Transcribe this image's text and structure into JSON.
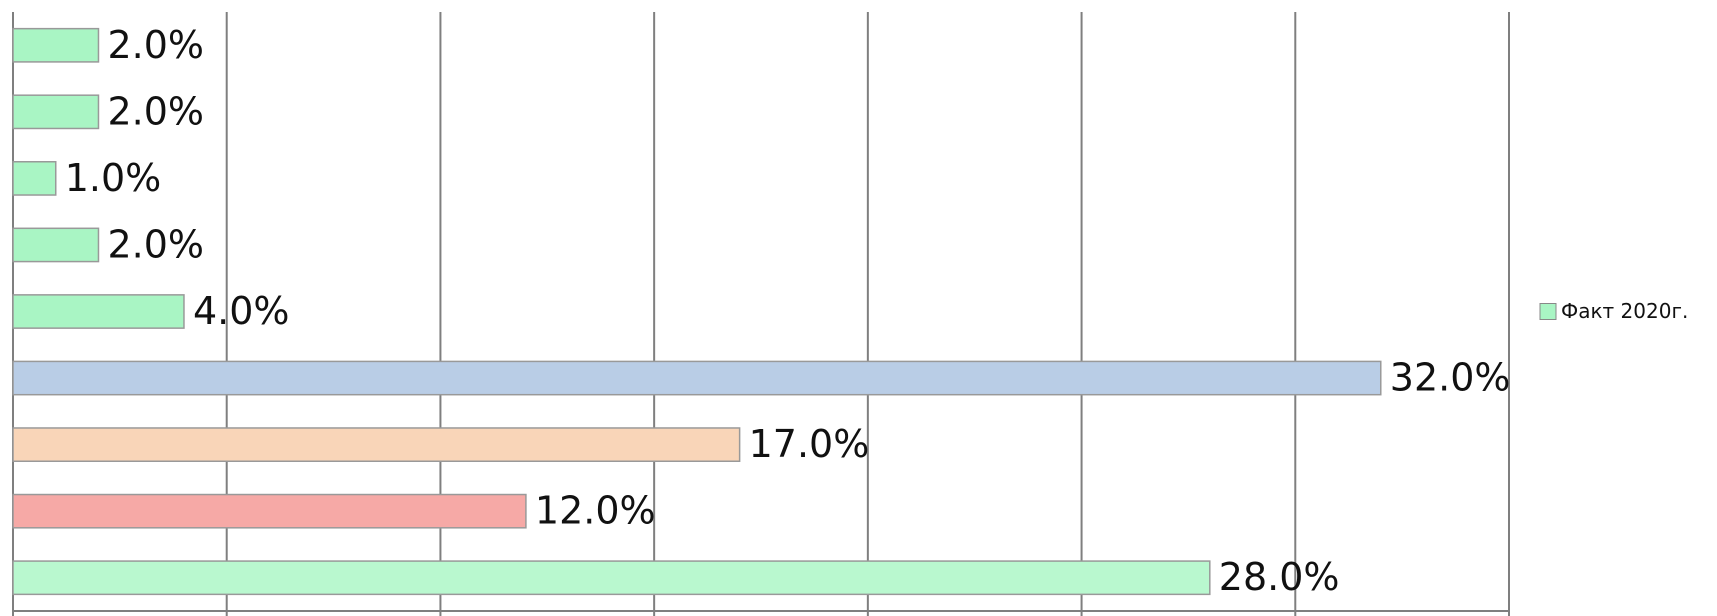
{
  "chart_data": {
    "type": "barh",
    "categories": [
      null,
      null,
      null,
      null,
      null,
      null,
      null,
      null,
      null
    ],
    "values": [
      2,
      2,
      1,
      2,
      4,
      32,
      17,
      12,
      28
    ],
    "value_labels": [
      "2.0%",
      "2.0%",
      "1.0%",
      "2.0%",
      "4.0%",
      "32.0%",
      "17.0%",
      "12.0%",
      "28.0%"
    ],
    "colors": [
      "#a9f5c4",
      "#a9f5c4",
      "#a9f5c4",
      "#a9f5c4",
      "#a9f5c4",
      "#b9cde6",
      "#f9d5b8",
      "#f6a9a6",
      "#b9f8cf"
    ],
    "legend": {
      "name": "Факт 2020г.",
      "color": "#a9f5c4",
      "position": "right"
    },
    "xlim": [
      0,
      35
    ],
    "xticks": [
      0,
      5,
      10,
      15,
      20,
      25,
      30,
      35
    ],
    "grid": true
  }
}
